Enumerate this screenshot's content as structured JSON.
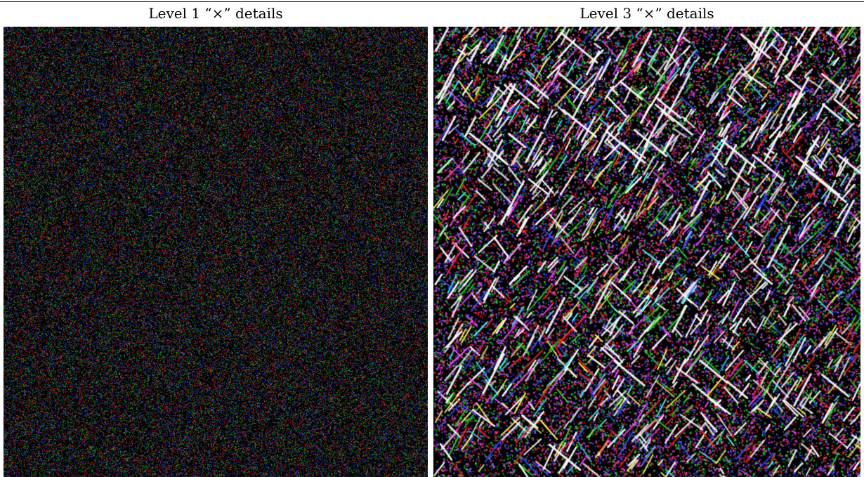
{
  "panels": [
    {
      "title": "Level 1 “×” details",
      "texture": "fine-noise",
      "palette": [
        "#ff2020",
        "#20d020",
        "#2040ff",
        "#ffffff"
      ]
    },
    {
      "title": "Level 3 “×” details",
      "texture": "diagonal-streaks",
      "palette": [
        "#ff2020",
        "#20e020",
        "#3050ff",
        "#ff40ff",
        "#ffffff",
        "#ffff40",
        "#40ffff"
      ]
    }
  ]
}
